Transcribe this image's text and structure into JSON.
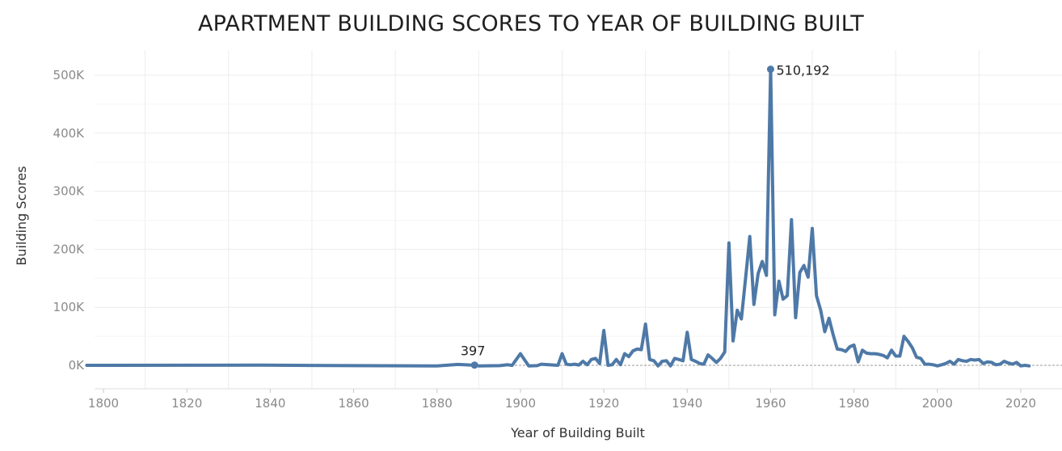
{
  "chart_data": {
    "type": "line",
    "title": "APARTMENT BUILDING SCORES TO YEAR OF BUILDING BUILT",
    "xlabel": "Year of Building Built",
    "ylabel": "Building Scores",
    "xlim": [
      1796,
      2031
    ],
    "ylim": [
      -30000,
      540000
    ],
    "x_ticks": [
      1800,
      1820,
      1840,
      1860,
      1880,
      1900,
      1920,
      1940,
      1960,
      1980,
      2000,
      2020
    ],
    "y_ticks": [
      {
        "value": 0,
        "label": "0K"
      },
      {
        "value": 100000,
        "label": "100K"
      },
      {
        "value": 200000,
        "label": "200K"
      },
      {
        "value": 300000,
        "label": "300K"
      },
      {
        "value": 400000,
        "label": "400K"
      },
      {
        "value": 500000,
        "label": "500K"
      }
    ],
    "grid": true,
    "zero_line": "dashed",
    "line_color": "#4e79a7",
    "series": [
      {
        "points": [
          [
            1796,
            0
          ],
          [
            1820,
            200
          ],
          [
            1838,
            300
          ],
          [
            1860,
            -500
          ],
          [
            1880,
            -1000
          ],
          [
            1885,
            1500
          ],
          [
            1888,
            500
          ],
          [
            1889,
            397
          ],
          [
            1890,
            -1000
          ],
          [
            1895,
            -500
          ],
          [
            1897,
            1000
          ],
          [
            1898,
            -200
          ],
          [
            1900,
            20000
          ],
          [
            1902,
            -1000
          ],
          [
            1904,
            -500
          ],
          [
            1905,
            2000
          ],
          [
            1909,
            0
          ],
          [
            1910,
            20000
          ],
          [
            1911,
            2000
          ],
          [
            1912,
            1000
          ],
          [
            1913,
            2000
          ],
          [
            1914,
            500
          ],
          [
            1915,
            7000
          ],
          [
            1916,
            1000
          ],
          [
            1917,
            10000
          ],
          [
            1918,
            12000
          ],
          [
            1919,
            3000
          ],
          [
            1920,
            60000
          ],
          [
            1921,
            0
          ],
          [
            1922,
            1000
          ],
          [
            1923,
            10000
          ],
          [
            1924,
            1000
          ],
          [
            1925,
            20000
          ],
          [
            1926,
            15000
          ],
          [
            1927,
            25000
          ],
          [
            1928,
            28000
          ],
          [
            1929,
            27000
          ],
          [
            1930,
            71000
          ],
          [
            1931,
            10000
          ],
          [
            1932,
            8000
          ],
          [
            1933,
            -1000
          ],
          [
            1934,
            7000
          ],
          [
            1935,
            8000
          ],
          [
            1936,
            -1000
          ],
          [
            1937,
            12000
          ],
          [
            1938,
            10000
          ],
          [
            1939,
            8000
          ],
          [
            1940,
            57000
          ],
          [
            1941,
            10000
          ],
          [
            1942,
            7000
          ],
          [
            1943,
            3000
          ],
          [
            1944,
            2000
          ],
          [
            1945,
            18000
          ],
          [
            1946,
            12000
          ],
          [
            1947,
            5000
          ],
          [
            1948,
            12000
          ],
          [
            1949,
            23000
          ],
          [
            1950,
            211000
          ],
          [
            1951,
            42000
          ],
          [
            1952,
            95000
          ],
          [
            1953,
            80000
          ],
          [
            1954,
            150000
          ],
          [
            1955,
            222000
          ],
          [
            1956,
            105000
          ],
          [
            1957,
            158000
          ],
          [
            1958,
            179000
          ],
          [
            1959,
            155000
          ],
          [
            1960,
            510192
          ],
          [
            1961,
            87000
          ],
          [
            1962,
            145000
          ],
          [
            1963,
            114000
          ],
          [
            1964,
            120000
          ],
          [
            1965,
            251000
          ],
          [
            1966,
            82000
          ],
          [
            1967,
            160000
          ],
          [
            1968,
            172000
          ],
          [
            1969,
            152000
          ],
          [
            1970,
            236000
          ],
          [
            1971,
            120000
          ],
          [
            1972,
            95000
          ],
          [
            1973,
            58000
          ],
          [
            1974,
            81000
          ],
          [
            1975,
            53000
          ],
          [
            1976,
            28000
          ],
          [
            1977,
            27000
          ],
          [
            1978,
            24000
          ],
          [
            1979,
            32000
          ],
          [
            1980,
            35000
          ],
          [
            1981,
            6000
          ],
          [
            1982,
            26000
          ],
          [
            1983,
            21000
          ],
          [
            1984,
            20000
          ],
          [
            1985,
            20000
          ],
          [
            1986,
            19000
          ],
          [
            1987,
            17000
          ],
          [
            1988,
            13000
          ],
          [
            1989,
            26000
          ],
          [
            1990,
            16000
          ],
          [
            1991,
            16000
          ],
          [
            1992,
            50000
          ],
          [
            1993,
            41000
          ],
          [
            1994,
            30000
          ],
          [
            1995,
            14000
          ],
          [
            1996,
            12000
          ],
          [
            1997,
            2000
          ],
          [
            1998,
            2000
          ],
          [
            1999,
            1000
          ],
          [
            2000,
            -1000
          ],
          [
            2001,
            1000
          ],
          [
            2002,
            3000
          ],
          [
            2003,
            7000
          ],
          [
            2004,
            2000
          ],
          [
            2005,
            10000
          ],
          [
            2006,
            8000
          ],
          [
            2007,
            7000
          ],
          [
            2008,
            10000
          ],
          [
            2009,
            9000
          ],
          [
            2010,
            10000
          ],
          [
            2011,
            3000
          ],
          [
            2012,
            6000
          ],
          [
            2013,
            5000
          ],
          [
            2014,
            1000
          ],
          [
            2015,
            2000
          ],
          [
            2016,
            7000
          ],
          [
            2017,
            4000
          ],
          [
            2018,
            2000
          ],
          [
            2019,
            5000
          ],
          [
            2020,
            -1000
          ],
          [
            2021,
            0
          ],
          [
            2022,
            -1000
          ]
        ]
      }
    ],
    "annotations": [
      {
        "x": 1960,
        "y": 510192,
        "label": "510,192",
        "side": "right"
      },
      {
        "x": 1889,
        "y": 397,
        "label": "397",
        "side": "above"
      }
    ]
  }
}
